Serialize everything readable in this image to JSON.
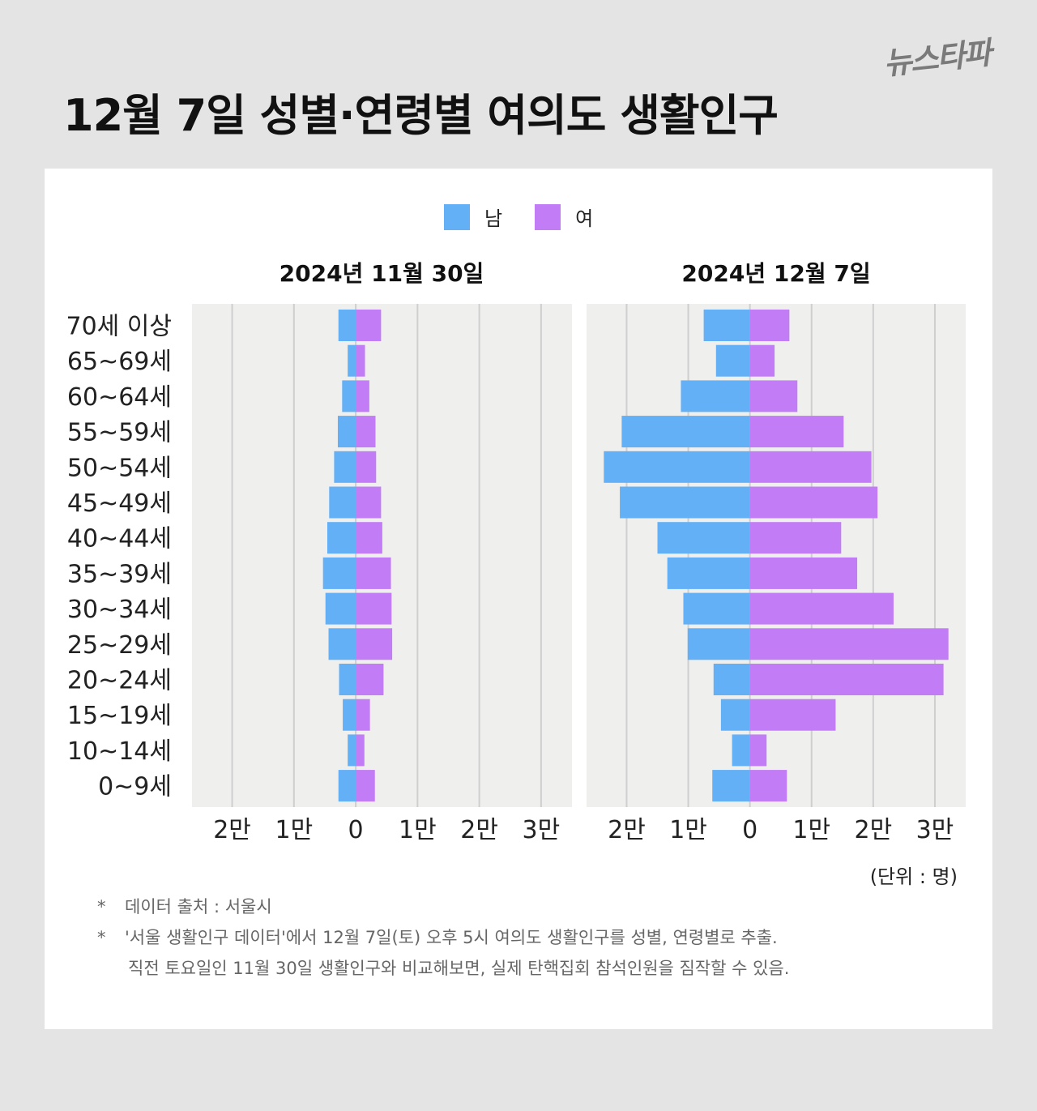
{
  "brand": "뉴스타파",
  "title": "12월 7일 성별·연령별 여의도 생활인구",
  "legend": {
    "male": "남",
    "female": "여"
  },
  "colors": {
    "male": "#63b0f7",
    "female": "#c27cf5",
    "plot_bg": "#efefee",
    "grid": "#cfcfcf"
  },
  "unit_note": "(단위 : 명)",
  "notes": {
    "line1_mark": "*",
    "line1": "데이터 출처 : 서울시",
    "line2_mark": "*",
    "line2a": "'서울 생활인구 데이터'에서 12월 7일(토) 오후 5시 여의도 생활인구를 성별, 연령별로 추출.",
    "line2b": "직전 토요일인 11월 30일 생활인구와 비교해보면, 실제 탄핵집회 참석인원을 짐작할 수 있음."
  },
  "chart_data": [
    {
      "type": "bar",
      "orientation": "population-pyramid",
      "title": "2024년 11월 30일",
      "categories": [
        "70세 이상",
        "65~69세",
        "60~64세",
        "55~59세",
        "50~54세",
        "45~49세",
        "40~44세",
        "35~39세",
        "30~34세",
        "25~29세",
        "20~24세",
        "15~19세",
        "10~14세",
        "0~9세"
      ],
      "series": [
        {
          "name": "남",
          "values": [
            2800,
            1300,
            2200,
            2900,
            3500,
            4300,
            4600,
            5300,
            4900,
            4400,
            2700,
            2100,
            1300,
            2800
          ]
        },
        {
          "name": "여",
          "values": [
            4100,
            1500,
            2200,
            3200,
            3300,
            4100,
            4300,
            5700,
            5800,
            5900,
            4500,
            2300,
            1400,
            3100
          ]
        }
      ],
      "xlim": [
        -26500,
        35000
      ],
      "tick_values": [
        -20000,
        -10000,
        0,
        10000,
        20000,
        30000
      ],
      "tick_labels": [
        "2만",
        "1만",
        "0",
        "1만",
        "2만",
        "3만"
      ]
    },
    {
      "type": "bar",
      "orientation": "population-pyramid",
      "title": "2024년 12월 7일",
      "categories": [
        "70세 이상",
        "65~69세",
        "60~64세",
        "55~59세",
        "50~54세",
        "45~49세",
        "40~44세",
        "35~39세",
        "30~34세",
        "25~29세",
        "20~24세",
        "15~19세",
        "10~14세",
        "0~9세"
      ],
      "series": [
        {
          "name": "남",
          "values": [
            7500,
            5500,
            11200,
            20800,
            23700,
            21100,
            15000,
            13400,
            10800,
            10100,
            5900,
            4700,
            2900,
            6100
          ]
        },
        {
          "name": "여",
          "values": [
            6400,
            4000,
            7700,
            15200,
            19700,
            20700,
            14800,
            17400,
            23300,
            32200,
            31400,
            13900,
            2700,
            6000
          ]
        }
      ],
      "xlim": [
        -26500,
        35000
      ],
      "tick_values": [
        -20000,
        -10000,
        0,
        10000,
        20000,
        30000
      ],
      "tick_labels": [
        "2만",
        "1만",
        "0",
        "1만",
        "2만",
        "3만"
      ]
    }
  ]
}
